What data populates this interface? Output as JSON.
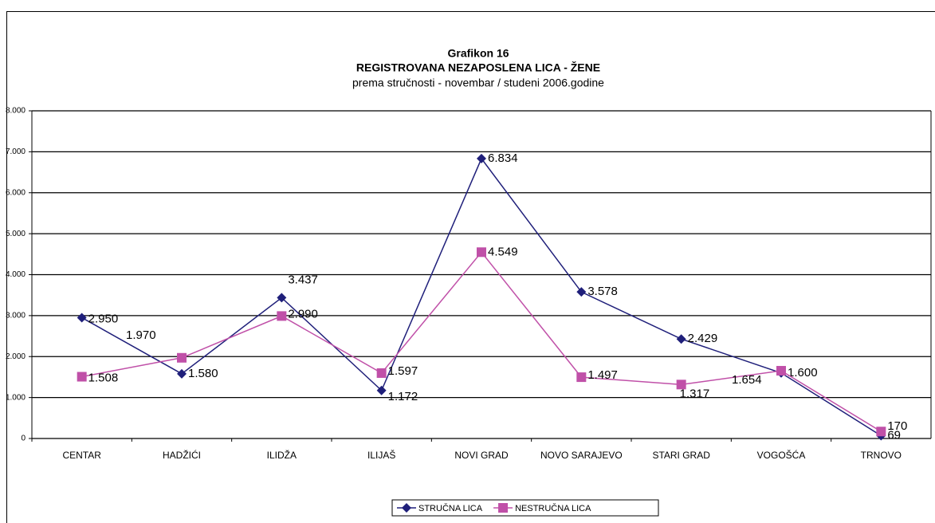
{
  "chart_data": {
    "type": "line",
    "title": "Grafikon 16",
    "subtitle": "REGISTROVANA NEZAPOSLENA LICA - ŽENE",
    "subtitle2": "prema stručnosti - novembar / studeni 2006.godine",
    "categories": [
      "CENTAR",
      "HADŽIĆI",
      "ILIDŽA",
      "ILIJAŠ",
      "NOVI GRAD",
      "NOVO SARAJEVO",
      "STARI GRAD",
      "VOGOŠĆA",
      "TRNOVO"
    ],
    "series": [
      {
        "name": "STRUČNA LICA",
        "color": "#1f1f7a",
        "marker": "diamond",
        "values": [
          2950,
          1580,
          3437,
          1172,
          6834,
          3578,
          2429,
          1600,
          69
        ],
        "value_labels": [
          "2.950",
          "1.580",
          "3.437",
          "1.172",
          "6.834",
          "3.578",
          "2.429",
          "1.600",
          "69"
        ]
      },
      {
        "name": "NESTRUČNA LICA",
        "color": "#c050a8",
        "marker": "square",
        "values": [
          1508,
          1970,
          2990,
          1597,
          4549,
          1497,
          1317,
          1654,
          170
        ],
        "value_labels": [
          "1.508",
          "1.970",
          "2.990",
          "1.597",
          "4.549",
          "1.497",
          "1.317",
          "1.654",
          "170"
        ]
      }
    ],
    "ylim": [
      0,
      8000
    ],
    "yticks": [
      0,
      {
        "value": 1000,
        "label": "1.000"
      },
      {
        "value": 2000,
        "label": "2.000"
      },
      {
        "value": 3000,
        "label": "3.000"
      },
      {
        "value": 4000,
        "label": "4.000"
      },
      {
        "value": 5000,
        "label": "5.000"
      },
      {
        "value": 6000,
        "label": "6.000"
      },
      {
        "value": 7000,
        "label": "7.000"
      },
      {
        "value": 8000,
        "label": "8.000"
      }
    ],
    "grid": true,
    "legend": "bottom"
  }
}
